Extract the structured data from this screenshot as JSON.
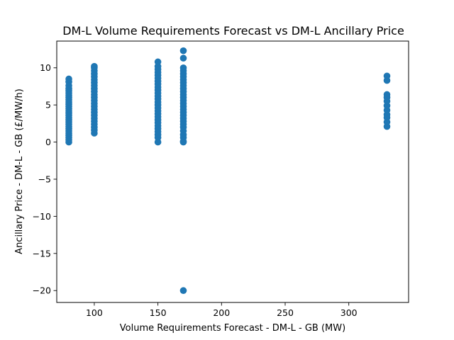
{
  "chart_data": {
    "type": "scatter",
    "title": "DM-L Volume Requirements Forecast vs DM-L Ancillary Price",
    "xlabel": "Volume Requirements Forecast - DM-L - GB (MW)",
    "ylabel": "Ancillary Price - DM-L - GB (£/MW/h)",
    "xlim": [
      70.5,
      347
    ],
    "ylim": [
      -21.6,
      13.6
    ],
    "xticks": [
      100,
      150,
      200,
      250,
      300
    ],
    "yticks": [
      10,
      5,
      0,
      -5,
      -10,
      -15,
      -20
    ],
    "xtick_labels": [
      "100",
      "150",
      "200",
      "250",
      "300"
    ],
    "ytick_labels": [
      "10",
      "5",
      "0",
      "−5",
      "−10",
      "−15",
      "−20"
    ],
    "grid": false,
    "marker_color": "#1f77b4",
    "series": [
      {
        "points": [
          [
            80,
            0.0
          ],
          [
            80,
            0.3
          ],
          [
            80,
            0.6
          ],
          [
            80,
            0.9
          ],
          [
            80,
            1.2
          ],
          [
            80,
            1.5
          ],
          [
            80,
            1.8
          ],
          [
            80,
            2.1
          ],
          [
            80,
            2.4
          ],
          [
            80,
            2.7
          ],
          [
            80,
            3.0
          ],
          [
            80,
            3.3
          ],
          [
            80,
            3.6
          ],
          [
            80,
            3.9
          ],
          [
            80,
            4.2
          ],
          [
            80,
            4.5
          ],
          [
            80,
            4.8
          ],
          [
            80,
            5.1
          ],
          [
            80,
            5.4
          ],
          [
            80,
            5.7
          ],
          [
            80,
            6.0
          ],
          [
            80,
            6.3
          ],
          [
            80,
            6.6
          ],
          [
            80,
            6.9
          ],
          [
            80,
            7.2
          ],
          [
            80,
            7.6
          ],
          [
            80,
            8.1
          ],
          [
            80,
            8.5
          ],
          [
            100,
            1.2
          ],
          [
            100,
            1.6
          ],
          [
            100,
            2.0
          ],
          [
            100,
            2.4
          ],
          [
            100,
            2.8
          ],
          [
            100,
            3.2
          ],
          [
            100,
            3.6
          ],
          [
            100,
            4.0
          ],
          [
            100,
            4.4
          ],
          [
            100,
            4.8
          ],
          [
            100,
            5.2
          ],
          [
            100,
            5.6
          ],
          [
            100,
            6.0
          ],
          [
            100,
            6.4
          ],
          [
            100,
            6.8
          ],
          [
            100,
            7.2
          ],
          [
            100,
            7.6
          ],
          [
            100,
            8.0
          ],
          [
            100,
            8.4
          ],
          [
            100,
            8.8
          ],
          [
            100,
            9.2
          ],
          [
            100,
            9.6
          ],
          [
            100,
            10.0
          ],
          [
            100,
            10.2
          ],
          [
            150,
            0.0
          ],
          [
            150,
            0.6
          ],
          [
            150,
            1.0
          ],
          [
            150,
            1.4
          ],
          [
            150,
            1.8
          ],
          [
            150,
            2.2
          ],
          [
            150,
            2.6
          ],
          [
            150,
            3.0
          ],
          [
            150,
            3.4
          ],
          [
            150,
            3.8
          ],
          [
            150,
            4.2
          ],
          [
            150,
            4.6
          ],
          [
            150,
            5.0
          ],
          [
            150,
            5.4
          ],
          [
            150,
            5.8
          ],
          [
            150,
            6.2
          ],
          [
            150,
            6.6
          ],
          [
            150,
            7.0
          ],
          [
            150,
            7.4
          ],
          [
            150,
            7.8
          ],
          [
            150,
            8.2
          ],
          [
            150,
            8.6
          ],
          [
            150,
            9.0
          ],
          [
            150,
            9.4
          ],
          [
            150,
            9.8
          ],
          [
            150,
            10.2
          ],
          [
            150,
            10.8
          ],
          [
            170,
            -20.0
          ],
          [
            170,
            0.0
          ],
          [
            170,
            0.1
          ],
          [
            170,
            0.6
          ],
          [
            170,
            1.0
          ],
          [
            170,
            1.5
          ],
          [
            170,
            2.0
          ],
          [
            170,
            2.4
          ],
          [
            170,
            2.8
          ],
          [
            170,
            3.2
          ],
          [
            170,
            3.6
          ],
          [
            170,
            4.0
          ],
          [
            170,
            4.4
          ],
          [
            170,
            4.8
          ],
          [
            170,
            5.2
          ],
          [
            170,
            5.6
          ],
          [
            170,
            6.0
          ],
          [
            170,
            6.4
          ],
          [
            170,
            6.8
          ],
          [
            170,
            7.2
          ],
          [
            170,
            7.6
          ],
          [
            170,
            8.0
          ],
          [
            170,
            8.4
          ],
          [
            170,
            8.8
          ],
          [
            170,
            9.2
          ],
          [
            170,
            9.6
          ],
          [
            170,
            10.0
          ],
          [
            170,
            11.3
          ],
          [
            170,
            12.3
          ],
          [
            330,
            2.1
          ],
          [
            330,
            2.7
          ],
          [
            330,
            3.3
          ],
          [
            330,
            3.7
          ],
          [
            330,
            4.3
          ],
          [
            330,
            4.9
          ],
          [
            330,
            5.5
          ],
          [
            330,
            6.0
          ],
          [
            330,
            6.4
          ],
          [
            330,
            8.3
          ],
          [
            330,
            8.9
          ]
        ]
      }
    ]
  }
}
